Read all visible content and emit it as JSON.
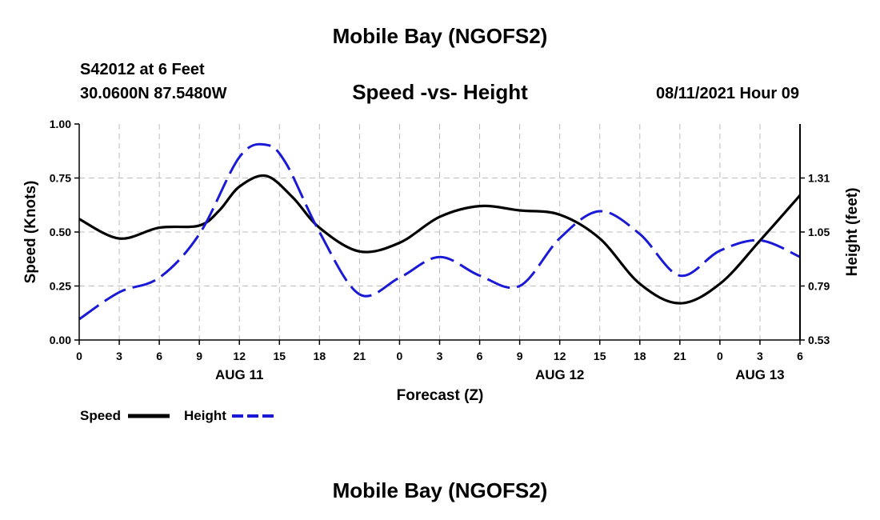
{
  "header": {
    "title": "Mobile Bay (NGOFS2)",
    "station": "S42012 at 6 Feet",
    "coordinates": "30.0600N  87.5480W",
    "subtitle": "Speed -vs- Height",
    "datetime": "08/11/2021 Hour 09"
  },
  "footer": {
    "title": "Mobile Bay (NGOFS2)"
  },
  "legend": {
    "speed_label": "Speed",
    "height_label": "Height"
  },
  "colors": {
    "speed": "#000000",
    "height": "#1a1ad6",
    "grid": "#bdbdbd"
  },
  "chart_data": {
    "type": "line",
    "title": "Speed -vs- Height",
    "xlabel": "Forecast (Z)",
    "ylabel_left": "Speed (Knots)",
    "ylabel_right": "Height (feet)",
    "x_ticks": [
      "0",
      "3",
      "6",
      "9",
      "12",
      "15",
      "18",
      "21",
      "0",
      "3",
      "6",
      "9",
      "12",
      "15",
      "18",
      "21",
      "0",
      "3",
      "6"
    ],
    "date_labels": [
      {
        "label": "AUG 11",
        "at_hour": 12
      },
      {
        "label": "AUG 12",
        "at_hour": 36
      },
      {
        "label": "AUG 13",
        "at_hour": 51
      }
    ],
    "xlim_hours": [
      0,
      54
    ],
    "ylim_left": [
      0,
      1
    ],
    "y_ticks_left": [
      "0.00",
      "0.25",
      "0.50",
      "0.75",
      "1.00"
    ],
    "y_ticks_left_values": [
      0,
      0.25,
      0.5,
      0.75,
      1.0
    ],
    "ylim_right": [
      0.53,
      1.57
    ],
    "y_ticks_right": [
      "0.53",
      "0.79",
      "1.05",
      "1.31"
    ],
    "y_ticks_right_values": [
      0.53,
      0.79,
      1.05,
      1.31
    ],
    "grid": true,
    "series": [
      {
        "name": "Speed",
        "axis": "left",
        "style": "solid",
        "x_hours": [
          0,
          3,
          6,
          9,
          10.5,
          12,
          14,
          16,
          18,
          21,
          24,
          27,
          30,
          33,
          36,
          39,
          42,
          45,
          48,
          51,
          54
        ],
        "values": [
          0.56,
          0.47,
          0.52,
          0.53,
          0.6,
          0.71,
          0.76,
          0.66,
          0.52,
          0.41,
          0.45,
          0.57,
          0.62,
          0.6,
          0.58,
          0.47,
          0.26,
          0.17,
          0.26,
          0.46,
          0.67
        ]
      },
      {
        "name": "Height",
        "axis": "right",
        "style": "dashed",
        "x_hours": [
          0,
          3,
          6,
          9,
          12,
          14,
          15.5,
          18,
          21,
          24,
          27,
          30,
          33,
          36,
          39,
          42,
          45,
          48,
          51,
          54
        ],
        "values": [
          0.63,
          0.76,
          0.83,
          1.04,
          1.41,
          1.47,
          1.38,
          1.05,
          0.75,
          0.83,
          0.93,
          0.84,
          0.79,
          1.02,
          1.15,
          1.04,
          0.84,
          0.96,
          1.01,
          0.93
        ]
      }
    ]
  }
}
